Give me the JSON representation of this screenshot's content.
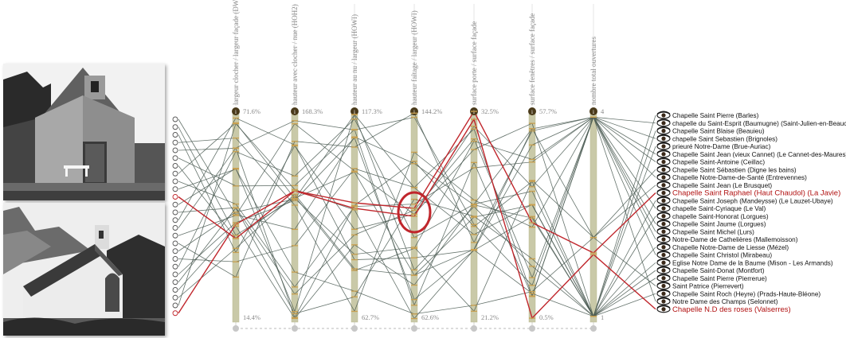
{
  "axes": [
    {
      "title": "largeur clocher / largeur façade (DWOFT)",
      "top_value": "71.6%",
      "bottom_value": "14.4%"
    },
    {
      "title": "hauteur avec clocher / nue (HOH2)",
      "top_value": "168.3%",
      "bottom_value": ""
    },
    {
      "title": "hauteur au nu / largeur (HOWI)",
      "top_value": "117.3%",
      "bottom_value": "62.7%"
    },
    {
      "title": "hauteur faîtage / largeur (HOWI)",
      "top_value": "144.2%",
      "bottom_value": "62.6%"
    },
    {
      "title": "surface porte / surface façade",
      "top_value": "32.5%",
      "bottom_value": "21.2%"
    },
    {
      "title": "surface fenêtres / surface façade",
      "top_value": "57.7%",
      "bottom_value": "0.5%"
    },
    {
      "title": "nombre total ouvertures",
      "top_value": "4",
      "bottom_value": "1"
    }
  ],
  "chapels": [
    "Chapelle Saint Pierre (Barles)",
    "chapelle du Saint-Esprit (Baumugne) (Saint-Julien-en-Beauchêne)",
    "Chapelle Saint Blaise (Beauieu)",
    "chapelle Saint Sebastien (Brignoles)",
    "prieuré Notre-Dame (Brue-Auriac)",
    "Chapelle Saint Jean (vieux Cannet) (Le Cannet-des-Maures)",
    "Chapelle Saint-Antoine (Ceillac)",
    "Chapelle Saint Sébastien (Digne les bains)",
    "Chapelle Notre-Dame-de-Santé (Entrevennes)",
    "Chapelle Saint Jean (Le Brusquet)",
    "Chapelle Saint Raphael (Haut Chaudol) (La Javie)",
    "Chapelle Saint Joseph (Mandeysse) (Le Lauzet-Ubaye)",
    "chapelle Saint-Cyriaque (Le Val)",
    "chapelle Saint-Honorat (Lorgues)",
    "Chapelle Saint Jaume (Lorgues)",
    "Chapelle Saint Michel (Lurs)",
    "Notre-Dame de Cathelières (Mallemoisson)",
    "Chapelle Notre-Dame de Liesse (Mézel)",
    "Chapelle Saint Christol (Mirabeau)",
    "Eglise Notre Dame de la Baume  (Mison - Les Armands)",
    "Chapelle Saint-Donat (Montfort)",
    "Chapelle Saint Pierre (Pierrerue)",
    "Saint Patrice (Pierrevert)",
    "Chapelle Saint Roch (Heyre) (Prads-Haute-Bléone)",
    "Notre Dame des Champs (Selonnet)",
    "Chapelle N.D des roses (Valserres)"
  ],
  "highlighted": [
    10,
    25
  ],
  "colors": {
    "line": "#4a5a52",
    "highlight": "#c0262c",
    "axis_bar": "#c9c9a8",
    "axis_tick": "#c9a050"
  }
}
